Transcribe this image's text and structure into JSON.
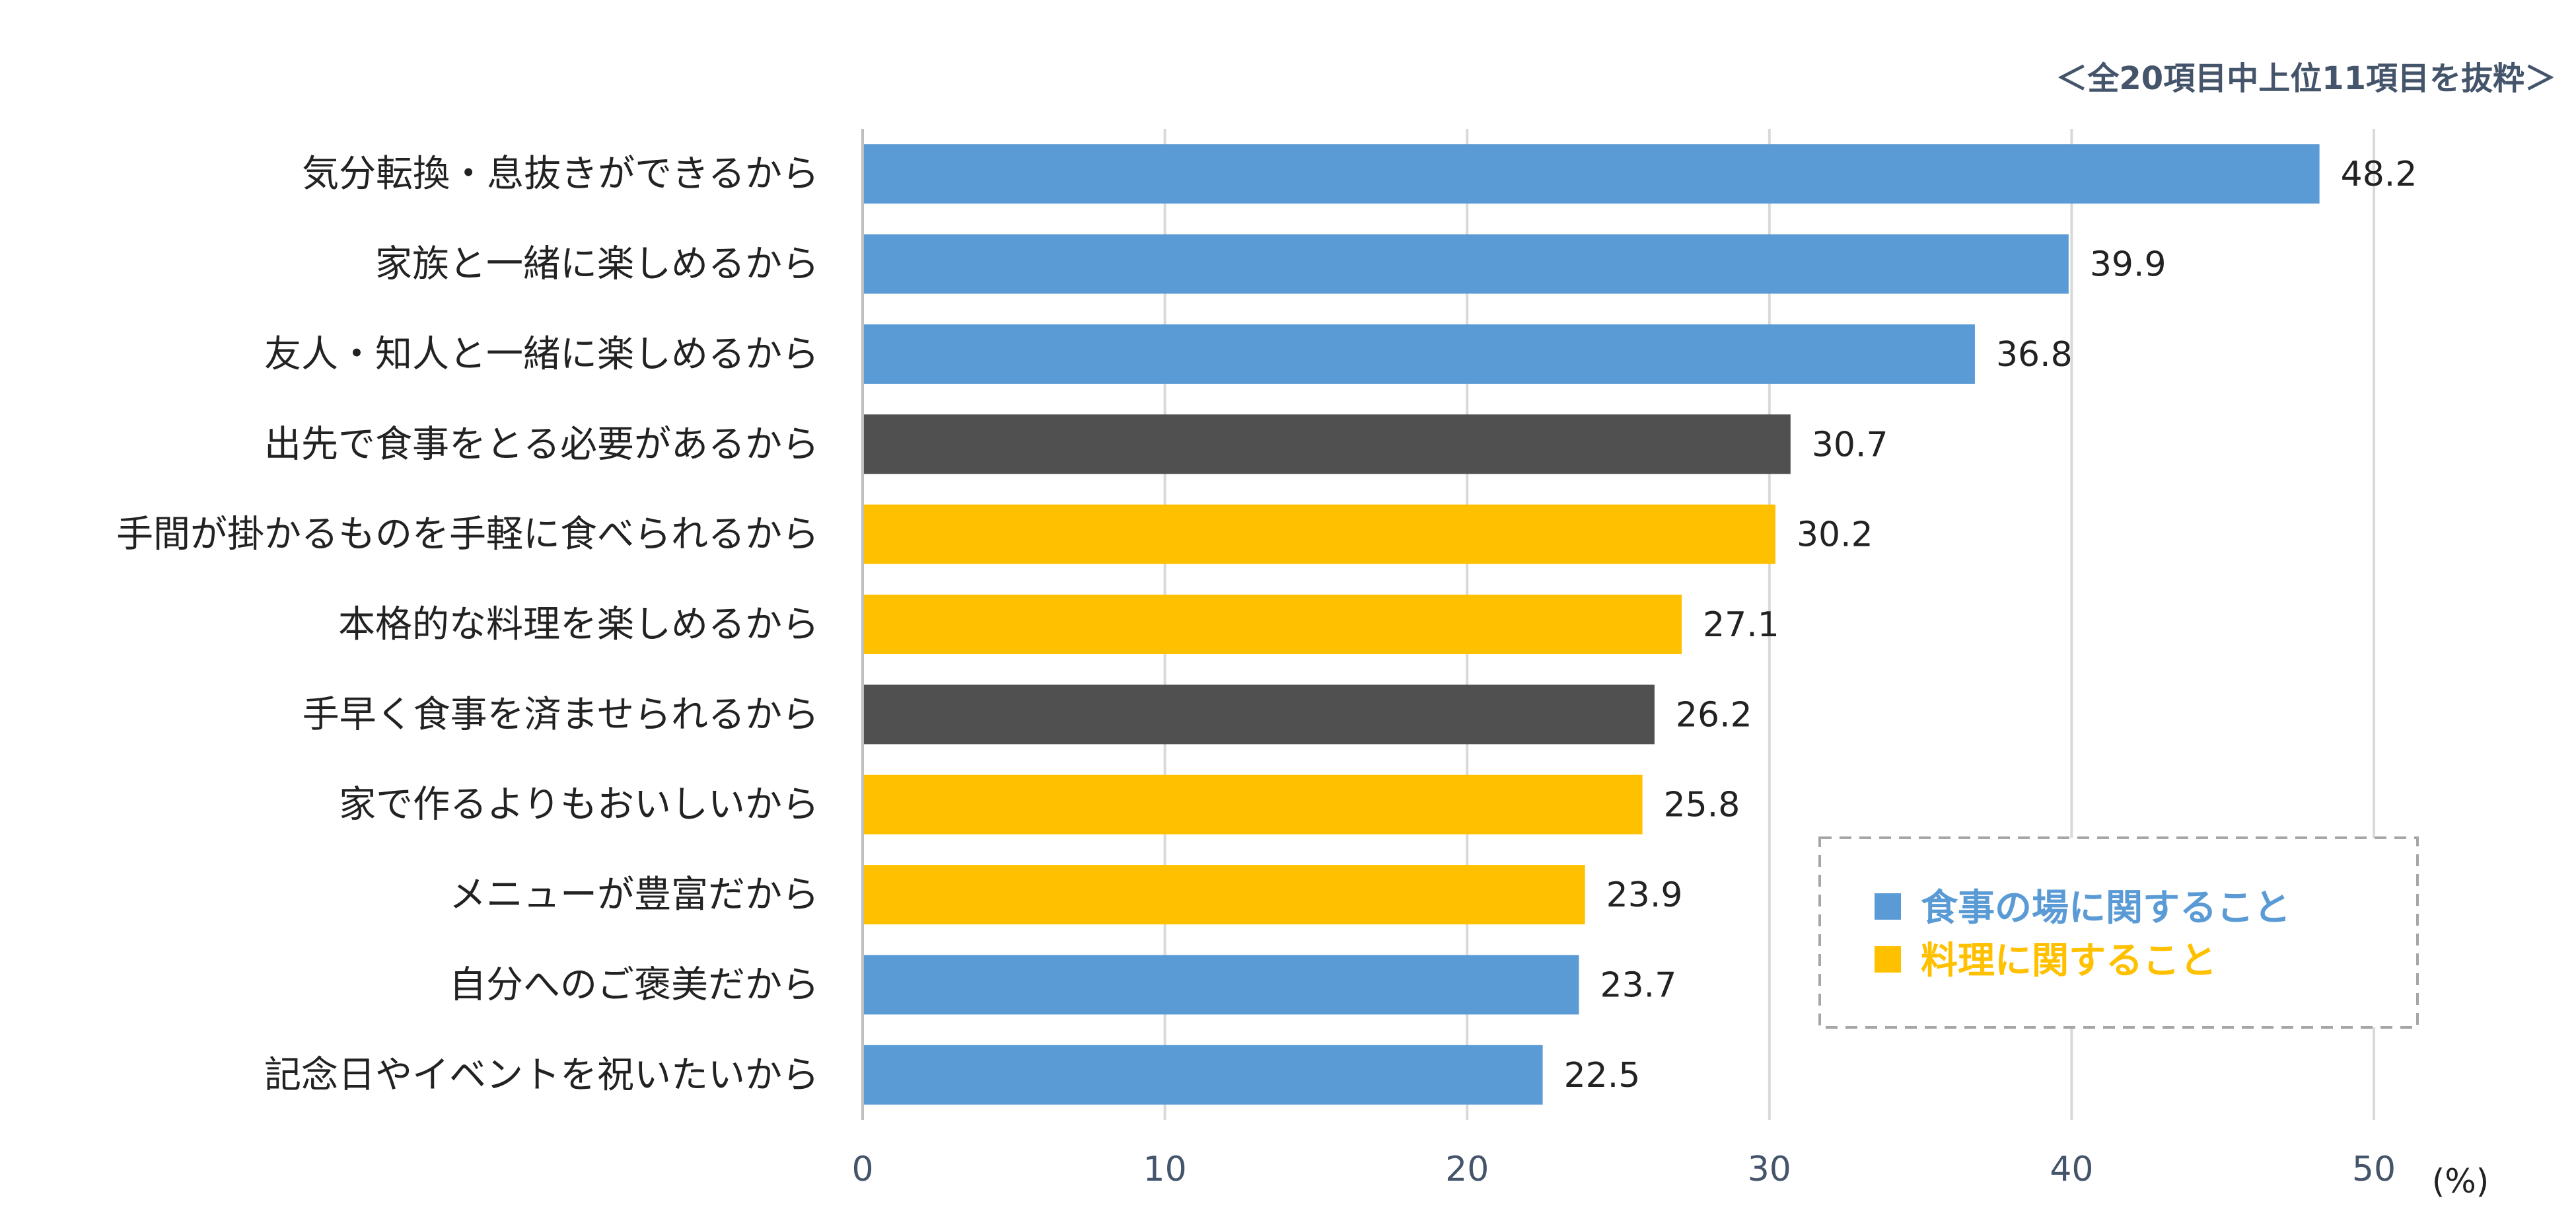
{
  "chart_data": {
    "type": "bar",
    "orientation": "horizontal",
    "note": "＜全20項目中上位11項目を抜粋＞",
    "unit": "(%)",
    "xlim": [
      0,
      50
    ],
    "xticks": [
      0,
      10,
      20,
      30,
      40,
      50
    ],
    "grid": true,
    "categories": [
      "気分転換・息抜きができるから",
      "家族と一緒に楽しめるから",
      "友人・知人と一緒に楽しめるから",
      "出先で食事をとる必要があるから",
      "手間が掛かるものを手軽に食べられるから",
      "本格的な料理を楽しめるから",
      "手早く食事を済ませられるから",
      "家で作るよりもおいしいから",
      "メニューが豊富だから",
      "自分へのご褒美だから",
      "記念日やイベントを祝いたいから"
    ],
    "values": [
      48.2,
      39.9,
      36.8,
      30.7,
      30.2,
      27.1,
      26.2,
      25.8,
      23.9,
      23.7,
      22.5
    ],
    "value_labels": [
      "48.2",
      "39.9",
      "36.8",
      "30.7",
      "30.2",
      "27.1",
      "26.2",
      "25.8",
      "23.9",
      "23.7",
      "22.5"
    ],
    "groups": [
      "place",
      "place",
      "place",
      "other",
      "food",
      "food",
      "other",
      "food",
      "food",
      "place",
      "place"
    ],
    "legend": {
      "placement": "bottom-right",
      "items": [
        {
          "label": "食事の場に関すること",
          "group": "place"
        },
        {
          "label": "料理に関すること",
          "group": "food"
        }
      ]
    },
    "colors": {
      "place": "#5b9bd5",
      "food": "#ffc000",
      "other": "#505050",
      "grid": "#d9d9d9",
      "axis": "#bfbfbf",
      "legend_border": "#a6a6a6"
    }
  }
}
